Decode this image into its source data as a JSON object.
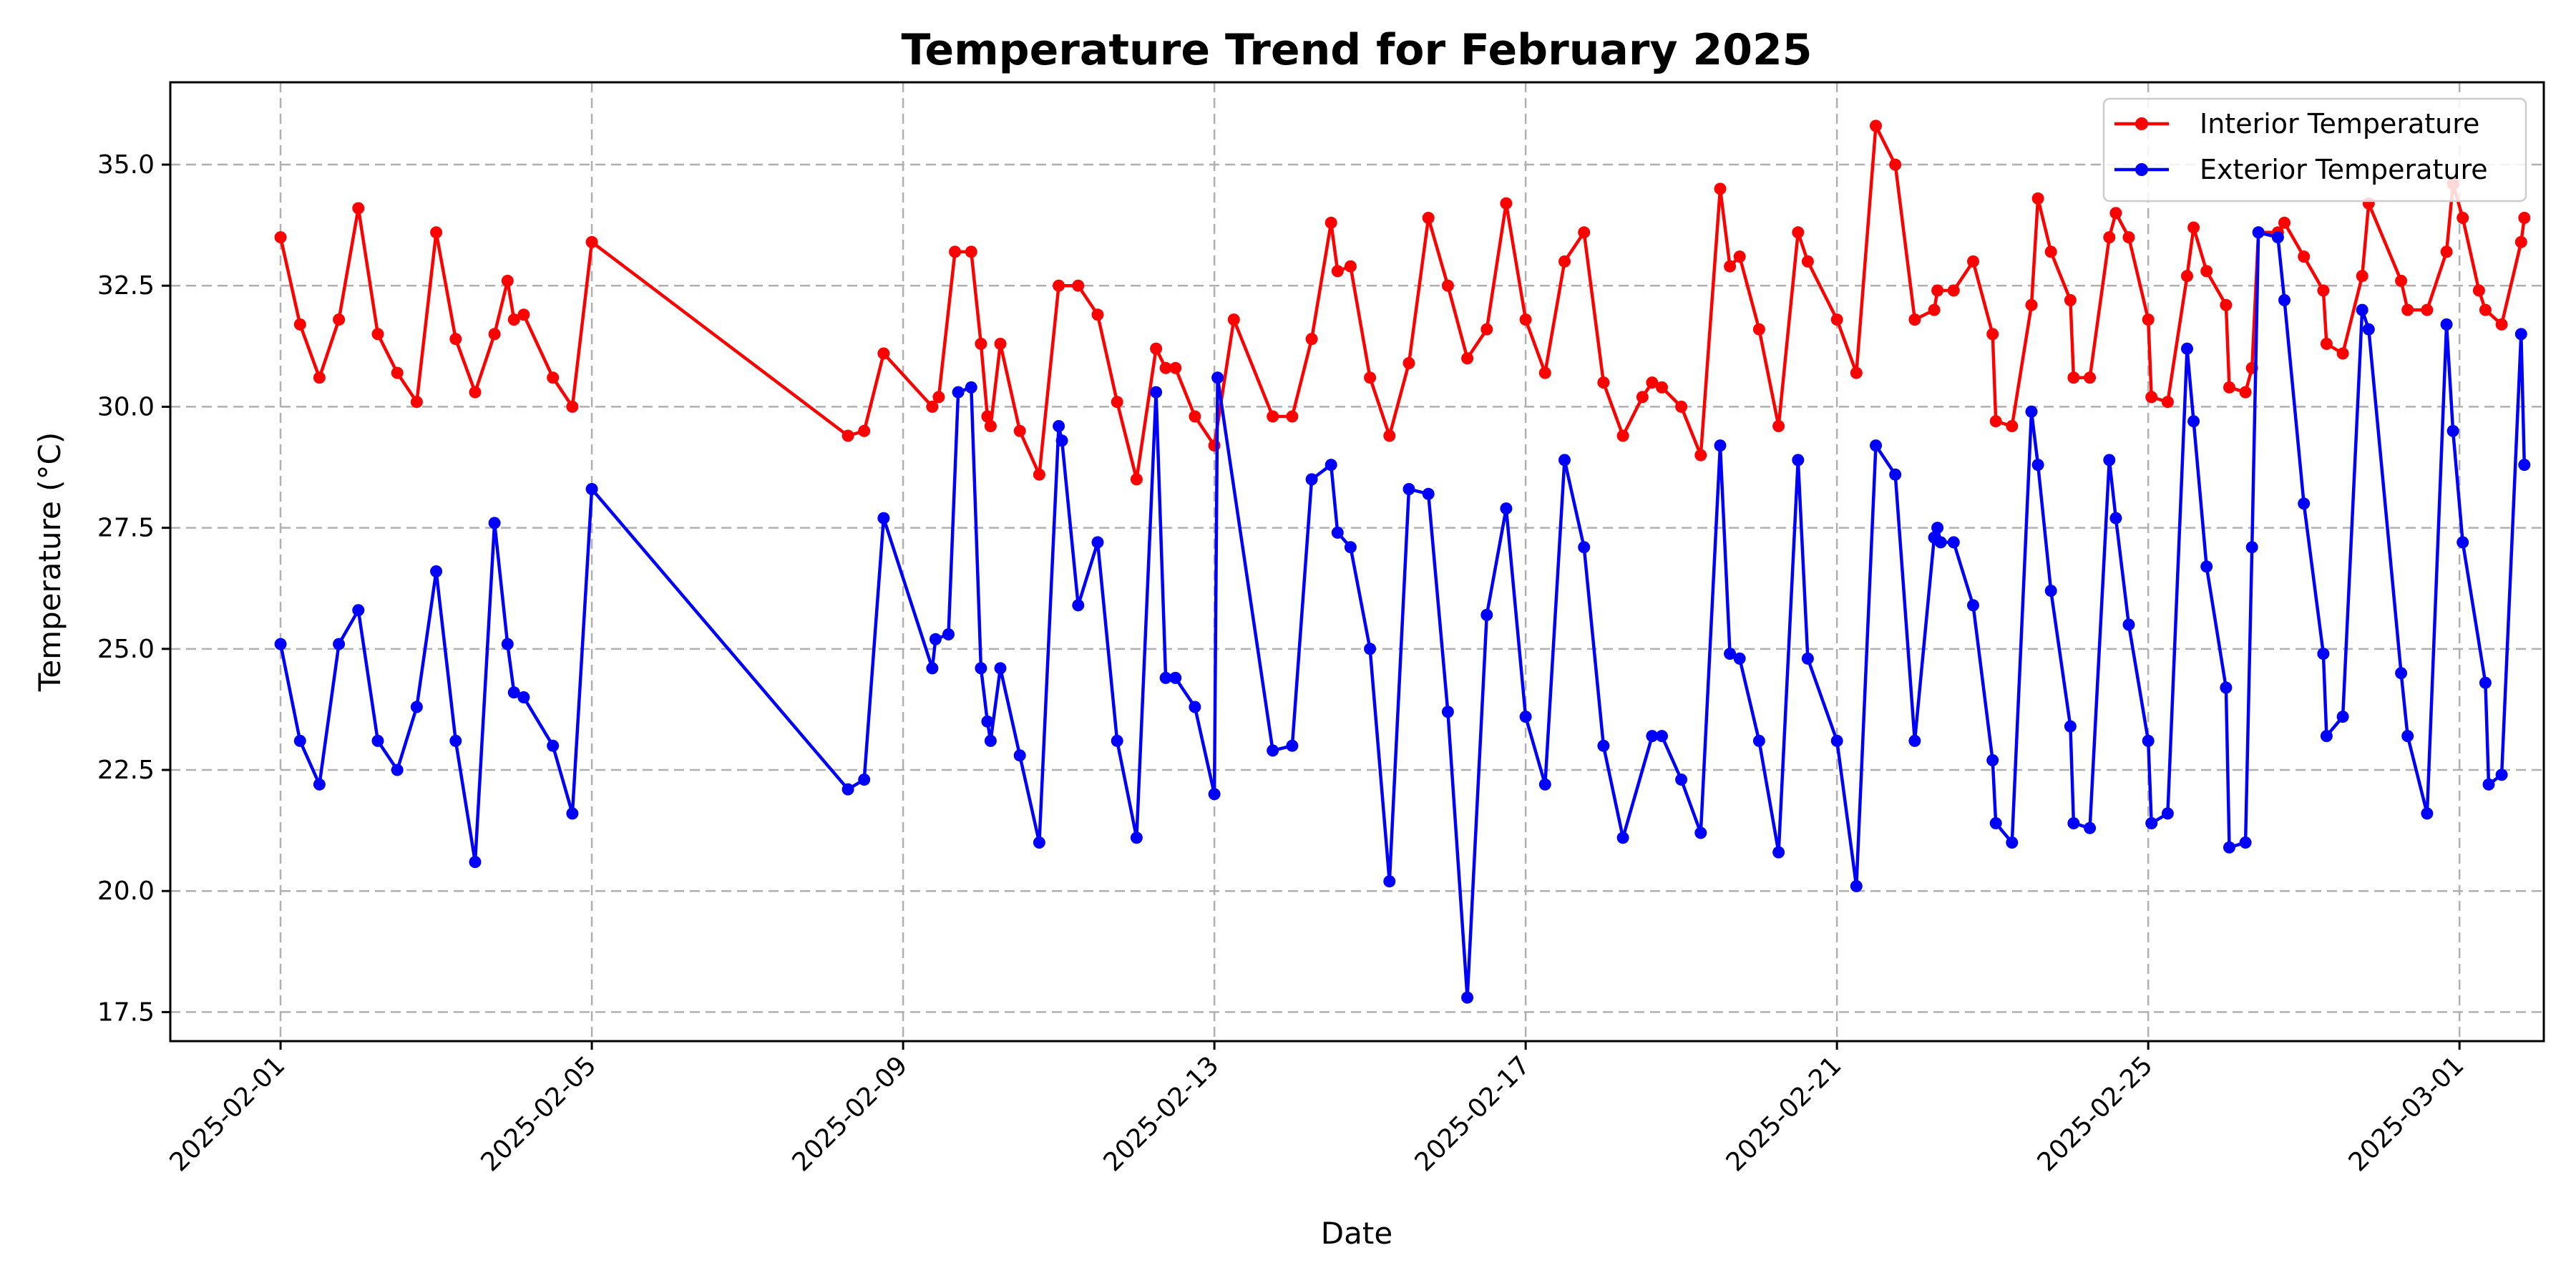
{
  "chart_data": {
    "type": "line",
    "title": "Temperature Trend for February 2025",
    "xlabel": "Date",
    "ylabel": "Temperature (°C)",
    "x_ticks": [
      "2025-02-01",
      "2025-02-05",
      "2025-02-09",
      "2025-02-13",
      "2025-02-17",
      "2025-02-21",
      "2025-02-25",
      "2025-03-01"
    ],
    "y_ticks": [
      "17.5",
      "20.0",
      "22.5",
      "25.0",
      "27.5",
      "30.0",
      "32.5",
      "35.0"
    ],
    "xlim": [
      "2025-01-30T14:00",
      "2025-03-02T02:00"
    ],
    "ylim": [
      16.9,
      36.7
    ],
    "grid": true,
    "legend_position": "top-right",
    "series": [
      {
        "name": "Interior Temperature",
        "color": "#ff0000",
        "points": [
          [
            "2025-02-01T00:00",
            33.5
          ],
          [
            "2025-02-01T06:00",
            31.7
          ],
          [
            "2025-02-01T12:00",
            30.6
          ],
          [
            "2025-02-01T18:00",
            31.8
          ],
          [
            "2025-02-02T00:00",
            34.1
          ],
          [
            "2025-02-02T06:00",
            31.5
          ],
          [
            "2025-02-02T12:00",
            30.7
          ],
          [
            "2025-02-02T18:00",
            30.1
          ],
          [
            "2025-02-03T00:00",
            33.6
          ],
          [
            "2025-02-03T06:00",
            31.4
          ],
          [
            "2025-02-03T12:00",
            30.3
          ],
          [
            "2025-02-03T18:00",
            31.5
          ],
          [
            "2025-02-03T22:00",
            32.6
          ],
          [
            "2025-02-04T00:00",
            31.8
          ],
          [
            "2025-02-04T03:00",
            31.9
          ],
          [
            "2025-02-04T12:00",
            30.6
          ],
          [
            "2025-02-04T18:00",
            30.0
          ],
          [
            "2025-02-05T00:00",
            33.4
          ],
          [
            "2025-02-08T07:00",
            29.4
          ],
          [
            "2025-02-08T12:00",
            29.5
          ],
          [
            "2025-02-08T18:00",
            31.1
          ],
          [
            "2025-02-09T09:00",
            30.0
          ],
          [
            "2025-02-09T11:00",
            30.2
          ],
          [
            "2025-02-09T16:00",
            33.2
          ],
          [
            "2025-02-09T21:00",
            33.2
          ],
          [
            "2025-02-10T00:00",
            31.3
          ],
          [
            "2025-02-10T02:00",
            29.8
          ],
          [
            "2025-02-10T03:00",
            29.6
          ],
          [
            "2025-02-10T06:00",
            31.3
          ],
          [
            "2025-02-10T12:00",
            29.5
          ],
          [
            "2025-02-10T18:00",
            28.6
          ],
          [
            "2025-02-11T00:00",
            32.5
          ],
          [
            "2025-02-11T06:00",
            32.5
          ],
          [
            "2025-02-11T12:00",
            31.9
          ],
          [
            "2025-02-11T18:00",
            30.1
          ],
          [
            "2025-02-12T00:00",
            28.5
          ],
          [
            "2025-02-12T06:00",
            31.2
          ],
          [
            "2025-02-12T09:00",
            30.8
          ],
          [
            "2025-02-12T12:00",
            30.8
          ],
          [
            "2025-02-12T18:00",
            29.8
          ],
          [
            "2025-02-13T00:00",
            29.2
          ],
          [
            "2025-02-13T06:00",
            31.8
          ],
          [
            "2025-02-13T18:00",
            29.8
          ],
          [
            "2025-02-14T00:00",
            29.8
          ],
          [
            "2025-02-14T06:00",
            31.4
          ],
          [
            "2025-02-14T12:00",
            33.8
          ],
          [
            "2025-02-14T14:00",
            32.8
          ],
          [
            "2025-02-14T18:00",
            32.9
          ],
          [
            "2025-02-15T00:00",
            30.6
          ],
          [
            "2025-02-15T06:00",
            29.4
          ],
          [
            "2025-02-15T12:00",
            30.9
          ],
          [
            "2025-02-15T18:00",
            33.9
          ],
          [
            "2025-02-16T00:00",
            32.5
          ],
          [
            "2025-02-16T06:00",
            31.0
          ],
          [
            "2025-02-16T12:00",
            31.6
          ],
          [
            "2025-02-16T18:00",
            34.2
          ],
          [
            "2025-02-17T00:00",
            31.8
          ],
          [
            "2025-02-17T06:00",
            30.7
          ],
          [
            "2025-02-17T12:00",
            33.0
          ],
          [
            "2025-02-17T18:00",
            33.6
          ],
          [
            "2025-02-18T00:00",
            30.5
          ],
          [
            "2025-02-18T06:00",
            29.4
          ],
          [
            "2025-02-18T12:00",
            30.2
          ],
          [
            "2025-02-18T15:00",
            30.5
          ],
          [
            "2025-02-18T18:00",
            30.4
          ],
          [
            "2025-02-19T00:00",
            30.0
          ],
          [
            "2025-02-19T06:00",
            29.0
          ],
          [
            "2025-02-19T12:00",
            34.5
          ],
          [
            "2025-02-19T15:00",
            32.9
          ],
          [
            "2025-02-19T18:00",
            33.1
          ],
          [
            "2025-02-20T00:00",
            31.6
          ],
          [
            "2025-02-20T06:00",
            29.6
          ],
          [
            "2025-02-20T12:00",
            33.6
          ],
          [
            "2025-02-20T15:00",
            33.0
          ],
          [
            "2025-02-21T00:00",
            31.8
          ],
          [
            "2025-02-21T06:00",
            30.7
          ],
          [
            "2025-02-21T12:00",
            35.8
          ],
          [
            "2025-02-21T18:00",
            35.0
          ],
          [
            "2025-02-22T00:00",
            31.8
          ],
          [
            "2025-02-22T06:00",
            32.0
          ],
          [
            "2025-02-22T07:00",
            32.4
          ],
          [
            "2025-02-22T12:00",
            32.4
          ],
          [
            "2025-02-22T18:00",
            33.0
          ],
          [
            "2025-02-23T00:00",
            31.5
          ],
          [
            "2025-02-23T01:00",
            29.7
          ],
          [
            "2025-02-23T06:00",
            29.6
          ],
          [
            "2025-02-23T12:00",
            32.1
          ],
          [
            "2025-02-23T14:00",
            34.3
          ],
          [
            "2025-02-23T18:00",
            33.2
          ],
          [
            "2025-02-24T00:00",
            32.2
          ],
          [
            "2025-02-24T01:00",
            30.6
          ],
          [
            "2025-02-24T06:00",
            30.6
          ],
          [
            "2025-02-24T12:00",
            33.5
          ],
          [
            "2025-02-24T14:00",
            34.0
          ],
          [
            "2025-02-24T18:00",
            33.5
          ],
          [
            "2025-02-25T00:00",
            31.8
          ],
          [
            "2025-02-25T01:00",
            30.2
          ],
          [
            "2025-02-25T06:00",
            30.1
          ],
          [
            "2025-02-25T12:00",
            32.7
          ],
          [
            "2025-02-25T14:00",
            33.7
          ],
          [
            "2025-02-25T18:00",
            32.8
          ],
          [
            "2025-02-26T00:00",
            32.1
          ],
          [
            "2025-02-26T01:00",
            30.4
          ],
          [
            "2025-02-26T06:00",
            30.3
          ],
          [
            "2025-02-26T08:00",
            30.8
          ],
          [
            "2025-02-26T10:00",
            33.6
          ],
          [
            "2025-02-26T16:00",
            33.6
          ],
          [
            "2025-02-26T18:00",
            33.8
          ],
          [
            "2025-02-27T00:00",
            33.1
          ],
          [
            "2025-02-27T06:00",
            32.4
          ],
          [
            "2025-02-27T07:00",
            31.3
          ],
          [
            "2025-02-27T12:00",
            31.1
          ],
          [
            "2025-02-27T18:00",
            32.7
          ],
          [
            "2025-02-27T20:00",
            34.2
          ],
          [
            "2025-02-28T06:00",
            32.6
          ],
          [
            "2025-02-28T08:00",
            32.0
          ],
          [
            "2025-02-28T14:00",
            32.0
          ],
          [
            "2025-02-28T20:00",
            33.2
          ],
          [
            "2025-02-28T22:00",
            34.6
          ],
          [
            "2025-03-01T01:00",
            33.9
          ],
          [
            "2025-03-01T06:00",
            32.4
          ],
          [
            "2025-03-01T08:00",
            32.0
          ],
          [
            "2025-03-01T13:00",
            31.7
          ],
          [
            "2025-03-01T19:00",
            33.4
          ],
          [
            "2025-03-01T20:00",
            33.9
          ]
        ]
      },
      {
        "name": "Exterior Temperature",
        "color": "#0000ff",
        "points": [
          [
            "2025-02-01T00:00",
            25.1
          ],
          [
            "2025-02-01T06:00",
            23.1
          ],
          [
            "2025-02-01T12:00",
            22.2
          ],
          [
            "2025-02-01T18:00",
            25.1
          ],
          [
            "2025-02-02T00:00",
            25.8
          ],
          [
            "2025-02-02T06:00",
            23.1
          ],
          [
            "2025-02-02T12:00",
            22.5
          ],
          [
            "2025-02-02T18:00",
            23.8
          ],
          [
            "2025-02-03T00:00",
            26.6
          ],
          [
            "2025-02-03T06:00",
            23.1
          ],
          [
            "2025-02-03T12:00",
            20.6
          ],
          [
            "2025-02-03T18:00",
            27.6
          ],
          [
            "2025-02-03T22:00",
            25.1
          ],
          [
            "2025-02-04T00:00",
            24.1
          ],
          [
            "2025-02-04T03:00",
            24.0
          ],
          [
            "2025-02-04T12:00",
            23.0
          ],
          [
            "2025-02-04T18:00",
            21.6
          ],
          [
            "2025-02-05T00:00",
            28.3
          ],
          [
            "2025-02-08T07:00",
            22.1
          ],
          [
            "2025-02-08T12:00",
            22.3
          ],
          [
            "2025-02-08T18:00",
            27.7
          ],
          [
            "2025-02-09T09:00",
            24.6
          ],
          [
            "2025-02-09T10:00",
            25.2
          ],
          [
            "2025-02-09T14:00",
            25.3
          ],
          [
            "2025-02-09T17:00",
            30.3
          ],
          [
            "2025-02-09T21:00",
            30.4
          ],
          [
            "2025-02-10T00:00",
            24.6
          ],
          [
            "2025-02-10T02:00",
            23.5
          ],
          [
            "2025-02-10T03:00",
            23.1
          ],
          [
            "2025-02-10T06:00",
            24.6
          ],
          [
            "2025-02-10T12:00",
            22.8
          ],
          [
            "2025-02-10T18:00",
            21.0
          ],
          [
            "2025-02-11T00:00",
            29.6
          ],
          [
            "2025-02-11T01:00",
            29.3
          ],
          [
            "2025-02-11T06:00",
            25.9
          ],
          [
            "2025-02-11T12:00",
            27.2
          ],
          [
            "2025-02-11T18:00",
            23.1
          ],
          [
            "2025-02-12T00:00",
            21.1
          ],
          [
            "2025-02-12T06:00",
            30.3
          ],
          [
            "2025-02-12T09:00",
            24.4
          ],
          [
            "2025-02-12T12:00",
            24.4
          ],
          [
            "2025-02-12T18:00",
            23.8
          ],
          [
            "2025-02-13T00:00",
            22.0
          ],
          [
            "2025-02-13T01:00",
            30.6
          ],
          [
            "2025-02-13T18:00",
            22.9
          ],
          [
            "2025-02-14T00:00",
            23.0
          ],
          [
            "2025-02-14T06:00",
            28.5
          ],
          [
            "2025-02-14T12:00",
            28.8
          ],
          [
            "2025-02-14T14:00",
            27.4
          ],
          [
            "2025-02-14T18:00",
            27.1
          ],
          [
            "2025-02-15T00:00",
            25.0
          ],
          [
            "2025-02-15T06:00",
            20.2
          ],
          [
            "2025-02-15T12:00",
            28.3
          ],
          [
            "2025-02-15T18:00",
            28.2
          ],
          [
            "2025-02-16T00:00",
            23.7
          ],
          [
            "2025-02-16T06:00",
            17.8
          ],
          [
            "2025-02-16T12:00",
            25.7
          ],
          [
            "2025-02-16T18:00",
            27.9
          ],
          [
            "2025-02-17T00:00",
            23.6
          ],
          [
            "2025-02-17T06:00",
            22.2
          ],
          [
            "2025-02-17T12:00",
            28.9
          ],
          [
            "2025-02-17T18:00",
            27.1
          ],
          [
            "2025-02-18T00:00",
            23.0
          ],
          [
            "2025-02-18T06:00",
            21.1
          ],
          [
            "2025-02-18T15:00",
            23.2
          ],
          [
            "2025-02-18T18:00",
            23.2
          ],
          [
            "2025-02-19T00:00",
            22.3
          ],
          [
            "2025-02-19T06:00",
            21.2
          ],
          [
            "2025-02-19T12:00",
            29.2
          ],
          [
            "2025-02-19T15:00",
            24.9
          ],
          [
            "2025-02-19T18:00",
            24.8
          ],
          [
            "2025-02-20T00:00",
            23.1
          ],
          [
            "2025-02-20T06:00",
            20.8
          ],
          [
            "2025-02-20T12:00",
            28.9
          ],
          [
            "2025-02-20T15:00",
            24.8
          ],
          [
            "2025-02-21T00:00",
            23.1
          ],
          [
            "2025-02-21T06:00",
            20.1
          ],
          [
            "2025-02-21T12:00",
            29.2
          ],
          [
            "2025-02-21T18:00",
            28.6
          ],
          [
            "2025-02-22T00:00",
            23.1
          ],
          [
            "2025-02-22T06:00",
            27.3
          ],
          [
            "2025-02-22T07:00",
            27.5
          ],
          [
            "2025-02-22T08:00",
            27.2
          ],
          [
            "2025-02-22T12:00",
            27.2
          ],
          [
            "2025-02-22T18:00",
            25.9
          ],
          [
            "2025-02-23T00:00",
            22.7
          ],
          [
            "2025-02-23T01:00",
            21.4
          ],
          [
            "2025-02-23T06:00",
            21.0
          ],
          [
            "2025-02-23T12:00",
            29.9
          ],
          [
            "2025-02-23T14:00",
            28.8
          ],
          [
            "2025-02-23T18:00",
            26.2
          ],
          [
            "2025-02-24T00:00",
            23.4
          ],
          [
            "2025-02-24T01:00",
            21.4
          ],
          [
            "2025-02-24T06:00",
            21.3
          ],
          [
            "2025-02-24T12:00",
            28.9
          ],
          [
            "2025-02-24T14:00",
            27.7
          ],
          [
            "2025-02-24T18:00",
            25.5
          ],
          [
            "2025-02-25T00:00",
            23.1
          ],
          [
            "2025-02-25T01:00",
            21.4
          ],
          [
            "2025-02-25T06:00",
            21.6
          ],
          [
            "2025-02-25T12:00",
            31.2
          ],
          [
            "2025-02-25T14:00",
            29.7
          ],
          [
            "2025-02-25T18:00",
            26.7
          ],
          [
            "2025-02-26T00:00",
            24.2
          ],
          [
            "2025-02-26T01:00",
            20.9
          ],
          [
            "2025-02-26T06:00",
            21.0
          ],
          [
            "2025-02-26T08:00",
            27.1
          ],
          [
            "2025-02-26T10:00",
            33.6
          ],
          [
            "2025-02-26T16:00",
            33.5
          ],
          [
            "2025-02-26T18:00",
            32.2
          ],
          [
            "2025-02-27T00:00",
            28.0
          ],
          [
            "2025-02-27T06:00",
            24.9
          ],
          [
            "2025-02-27T07:00",
            23.2
          ],
          [
            "2025-02-27T12:00",
            23.6
          ],
          [
            "2025-02-27T18:00",
            32.0
          ],
          [
            "2025-02-27T20:00",
            31.6
          ],
          [
            "2025-02-28T06:00",
            24.5
          ],
          [
            "2025-02-28T08:00",
            23.2
          ],
          [
            "2025-02-28T14:00",
            21.6
          ],
          [
            "2025-02-28T20:00",
            31.7
          ],
          [
            "2025-02-28T22:00",
            29.5
          ],
          [
            "2025-03-01T01:00",
            27.2
          ],
          [
            "2025-03-01T08:00",
            24.3
          ],
          [
            "2025-03-01T09:00",
            22.2
          ],
          [
            "2025-03-01T13:00",
            22.4
          ],
          [
            "2025-03-01T19:00",
            31.5
          ],
          [
            "2025-03-01T20:00",
            28.8
          ]
        ]
      }
    ]
  }
}
